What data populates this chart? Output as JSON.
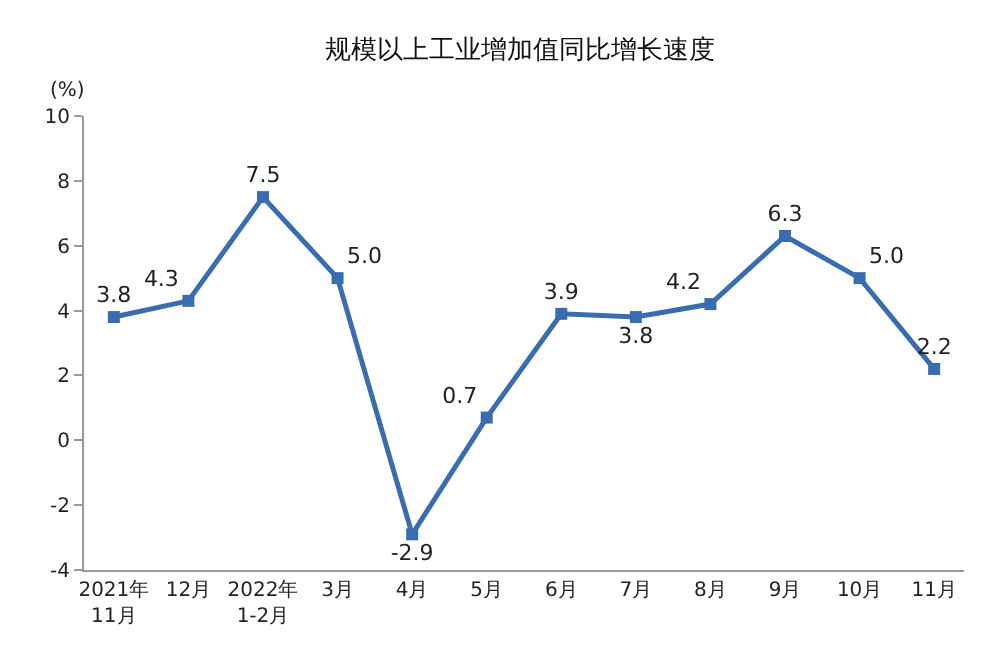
{
  "chart_data": {
    "type": "line",
    "title": "规模以上工业增加值同比增长速度",
    "ylabel": "(%)",
    "categories": [
      "2021年\n11月",
      "12月",
      "2022年\n1-2月",
      "3月",
      "4月",
      "5月",
      "6月",
      "7月",
      "8月",
      "9月",
      "10月",
      "11月"
    ],
    "series": [
      {
        "color": "#3a6db0",
        "values": [
          3.8,
          4.3,
          7.5,
          5.0,
          -2.9,
          0.7,
          3.9,
          3.8,
          4.2,
          6.3,
          5.0,
          2.2
        ],
        "value_labels": [
          "3.8",
          "4.3",
          "7.5",
          "5.0",
          "-2.9",
          "0.7",
          "3.9",
          "3.8",
          "4.2",
          "6.3",
          "5.0",
          "2.2"
        ]
      }
    ],
    "ylim": [
      -4,
      10
    ],
    "yticks": [
      -4,
      -2,
      0,
      2,
      4,
      6,
      8,
      10
    ],
    "grid": false,
    "marker": "square",
    "line_style": "solid"
  }
}
